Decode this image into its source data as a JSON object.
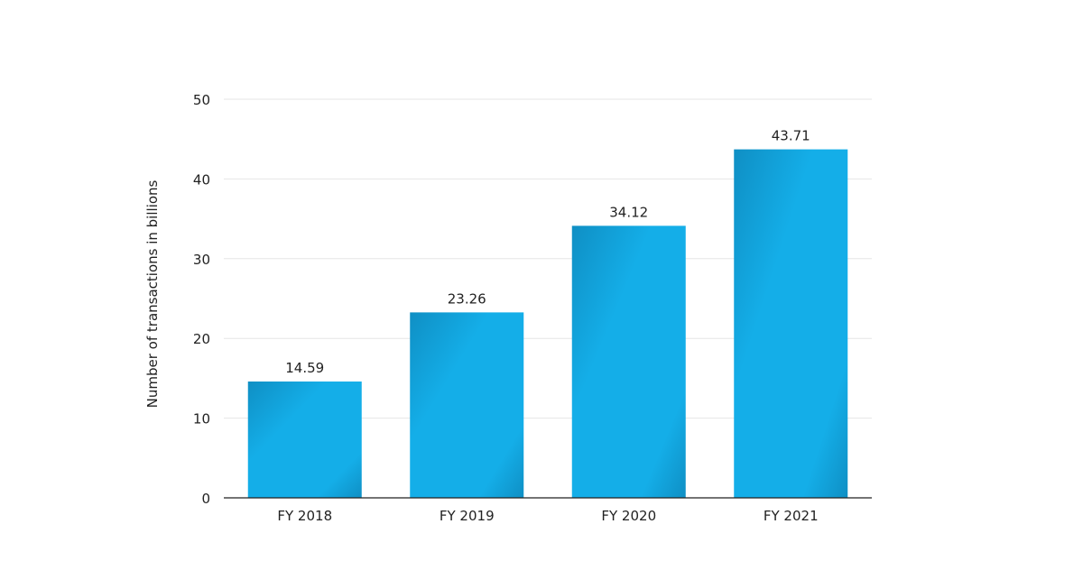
{
  "chart_data": {
    "type": "bar",
    "title": "",
    "xlabel": "",
    "ylabel": "Number of transactions in billions",
    "categories": [
      "FY 2018",
      "FY 2019",
      "FY 2020",
      "FY 2021"
    ],
    "values": [
      14.59,
      23.26,
      34.12,
      43.71
    ],
    "data_labels": [
      "14.59",
      "23.26",
      "34.12",
      "43.71"
    ],
    "ylim": [
      0,
      50
    ],
    "yticks": [
      0,
      10,
      20,
      30,
      40,
      50
    ],
    "ytick_labels": [
      "0",
      "10",
      "20",
      "30",
      "40",
      "50"
    ],
    "grid": true,
    "legend": "none",
    "colors": {
      "bar_light": "#14aee8",
      "bar_dark": "#0f8fc4",
      "grid": "#e6e6e6",
      "axis": "#222222"
    }
  }
}
